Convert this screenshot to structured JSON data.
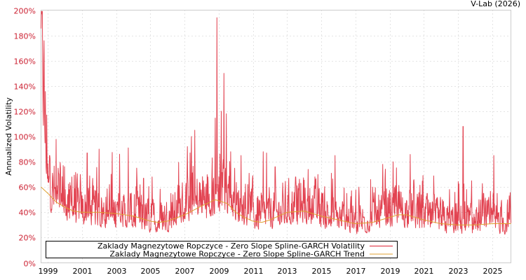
{
  "credit": "V-Lab (2026)",
  "chart_data": {
    "type": "line",
    "title": "",
    "xlabel": "",
    "ylabel": "Annualized Volatility",
    "ylim": [
      0,
      200
    ],
    "xlim": [
      1998.6,
      2026.1
    ],
    "grid": true,
    "legend_position": "lower-left inside",
    "y_ticks": [
      "0%",
      "20%",
      "40%",
      "60%",
      "80%",
      "100%",
      "120%",
      "140%",
      "160%",
      "180%",
      "200%"
    ],
    "x_ticks": [
      "1999",
      "2001",
      "2003",
      "2005",
      "2007",
      "2009",
      "2011",
      "2013",
      "2015",
      "2017",
      "2019",
      "2021",
      "2023",
      "2025"
    ],
    "series": [
      {
        "name": "Zaklady Magnezytowe Ropczyce - Zero Slope Spline-GARCH Volatility",
        "color": "#dd2233",
        "baseline_x": [
          1998.6,
          1999.0,
          2000.0,
          2001.0,
          2002.0,
          2003.0,
          2004.0,
          2005.0,
          2006.0,
          2007.0,
          2008.0,
          2008.9,
          2009.5,
          2010.0,
          2011.0,
          2012.0,
          2013.0,
          2014.0,
          2015.0,
          2016.0,
          2017.0,
          2018.0,
          2019.0,
          2020.0,
          2021.0,
          2022.0,
          2023.0,
          2024.0,
          2025.0,
          2026.1
        ],
        "baseline_y": [
          150,
          48,
          38,
          33,
          32,
          31,
          30,
          27,
          28,
          36,
          40,
          42,
          45,
          36,
          30,
          30,
          34,
          35,
          32,
          28,
          26,
          28,
          32,
          32,
          28,
          26,
          26,
          26,
          26,
          26
        ],
        "spikes": [
          {
            "x": 1998.65,
            "y": 162
          },
          {
            "x": 1998.75,
            "y": 88
          },
          {
            "x": 1998.95,
            "y": 86
          },
          {
            "x": 1999.1,
            "y": 85
          },
          {
            "x": 1999.6,
            "y": 75
          },
          {
            "x": 1999.9,
            "y": 77
          },
          {
            "x": 2000.4,
            "y": 68
          },
          {
            "x": 2000.9,
            "y": 70
          },
          {
            "x": 2001.3,
            "y": 87
          },
          {
            "x": 2002.0,
            "y": 90
          },
          {
            "x": 2002.6,
            "y": 62
          },
          {
            "x": 2003.2,
            "y": 86
          },
          {
            "x": 2003.7,
            "y": 91
          },
          {
            "x": 2004.2,
            "y": 75
          },
          {
            "x": 2004.6,
            "y": 67
          },
          {
            "x": 2005.1,
            "y": 68
          },
          {
            "x": 2006.2,
            "y": 55
          },
          {
            "x": 2006.7,
            "y": 61
          },
          {
            "x": 2007.4,
            "y": 100
          },
          {
            "x": 2007.6,
            "y": 105
          },
          {
            "x": 2008.1,
            "y": 65
          },
          {
            "x": 2008.6,
            "y": 68
          },
          {
            "x": 2008.9,
            "y": 194
          },
          {
            "x": 2009.15,
            "y": 120
          },
          {
            "x": 2009.3,
            "y": 150
          },
          {
            "x": 2009.45,
            "y": 118
          },
          {
            "x": 2009.7,
            "y": 88
          },
          {
            "x": 2010.3,
            "y": 85
          },
          {
            "x": 2010.7,
            "y": 62
          },
          {
            "x": 2011.6,
            "y": 88
          },
          {
            "x": 2011.8,
            "y": 87
          },
          {
            "x": 2012.3,
            "y": 76
          },
          {
            "x": 2013.5,
            "y": 68
          },
          {
            "x": 2014.0,
            "y": 65
          },
          {
            "x": 2014.8,
            "y": 70
          },
          {
            "x": 2015.8,
            "y": 85
          },
          {
            "x": 2016.5,
            "y": 55
          },
          {
            "x": 2017.2,
            "y": 60
          },
          {
            "x": 2018.0,
            "y": 60
          },
          {
            "x": 2018.6,
            "y": 78
          },
          {
            "x": 2019.2,
            "y": 80
          },
          {
            "x": 2020.2,
            "y": 80
          },
          {
            "x": 2020.4,
            "y": 65
          },
          {
            "x": 2021.2,
            "y": 55
          },
          {
            "x": 2022.1,
            "y": 50
          },
          {
            "x": 2022.5,
            "y": 58
          },
          {
            "x": 2023.3,
            "y": 108
          },
          {
            "x": 2023.5,
            "y": 58
          },
          {
            "x": 2023.8,
            "y": 65
          },
          {
            "x": 2024.5,
            "y": 55
          },
          {
            "x": 2025.1,
            "y": 85
          },
          {
            "x": 2025.3,
            "y": 55
          },
          {
            "x": 2026.0,
            "y": 53
          }
        ]
      },
      {
        "name": "Zaklady Magnezytowe Ropczyce - Zero Slope Spline-GARCH Trend",
        "color": "#e0a030",
        "x": [
          1998.6,
          1999.0,
          1999.5,
          2000.0,
          2000.5,
          2001.0,
          2002.0,
          2003.0,
          2004.0,
          2005.0,
          2005.5,
          2006.0,
          2007.0,
          2008.0,
          2008.8,
          2009.5,
          2010.0,
          2010.5,
          2011.0,
          2011.5,
          2012.0,
          2013.0,
          2014.0,
          2015.0,
          2016.0,
          2017.0,
          2018.0,
          2019.0,
          2019.5,
          2020.0,
          2021.0,
          2022.0,
          2023.0,
          2024.0,
          2025.0,
          2026.1
        ],
        "y": [
          60,
          55,
          48,
          44,
          41,
          40,
          40,
          39,
          37,
          33,
          32,
          33,
          38,
          45,
          50,
          47,
          40,
          36,
          33,
          32,
          34,
          40,
          41,
          37,
          34,
          31,
          32,
          36,
          38,
          38,
          34,
          31,
          30,
          30,
          31,
          31
        ]
      }
    ]
  },
  "legend": {
    "items": [
      {
        "label": "Zaklady Magnezytowe Ropczyce - Zero Slope Spline-GARCH Volatility",
        "color": "#dd2233"
      },
      {
        "label": "Zaklady Magnezytowe Ropczyce - Zero Slope Spline-GARCH Trend",
        "color": "#e0a030"
      }
    ]
  }
}
